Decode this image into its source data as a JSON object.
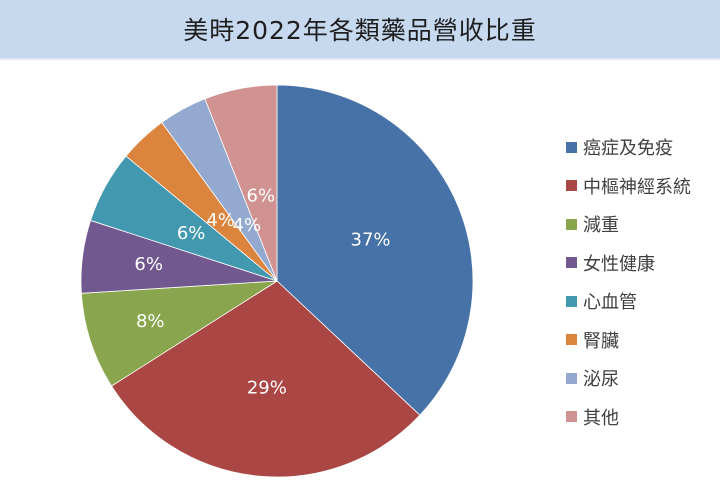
{
  "header": {
    "title": "美時2022年各類藥品營收比重"
  },
  "chart_data": {
    "type": "pie",
    "title": "美時2022年各類藥品營收比重",
    "categories": [
      "癌症及免疫",
      "中樞神經系統",
      "減重",
      "女性健康",
      "心血管",
      "腎臟",
      "泌尿",
      "其他"
    ],
    "values": [
      37,
      29,
      8,
      6,
      6,
      4,
      4,
      6
    ],
    "labels": [
      "37%",
      "29%",
      "8%",
      "6%",
      "6%",
      "4%",
      "4%",
      "6%"
    ],
    "colors": [
      "#4672a8",
      "#aa4643",
      "#89a54e",
      "#71588f",
      "#4198af",
      "#db843d",
      "#93a9cf",
      "#d19392"
    ],
    "label_colors": [
      "#ffffff",
      "#ffffff",
      "#ffffff",
      "#ffffff",
      "#ffffff",
      "#ffffff",
      "#ffffff",
      "#ffffff"
    ],
    "start_angle": "12 o'clock, clockwise",
    "legend_position": "right"
  },
  "legend": {
    "items": [
      {
        "label": "癌症及免疫",
        "color": "#4672a8"
      },
      {
        "label": "中樞神經系統",
        "color": "#aa4643"
      },
      {
        "label": "減重",
        "color": "#89a54e"
      },
      {
        "label": "女性健康",
        "color": "#71588f"
      },
      {
        "label": "心血管",
        "color": "#4198af"
      },
      {
        "label": "腎臟",
        "color": "#db843d"
      },
      {
        "label": "泌尿",
        "color": "#93a9cf"
      },
      {
        "label": "其他",
        "color": "#d19392"
      }
    ]
  }
}
